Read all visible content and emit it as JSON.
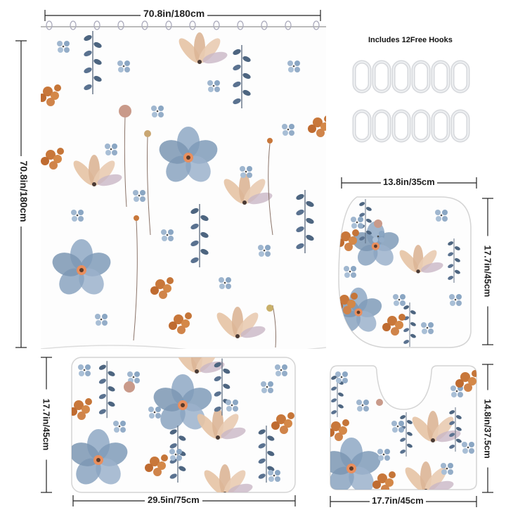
{
  "hooks_label": "Includes 12Free Hooks",
  "dimensions": {
    "curtain_width": "70.8in/180cm",
    "curtain_height": "70.8in/180cm",
    "lid_width": "13.8in/35cm",
    "lid_height": "17.7in/45cm",
    "mat_height": "17.7in/45cm",
    "mat_width": "29.5in/75cm",
    "contour_height": "14.8in/37.5cm",
    "contour_width": "17.7in/45cm"
  },
  "colors": {
    "blue": "#7f9bb8",
    "navy": "#4a5f78",
    "orange": "#c8773a",
    "peach": "#e8c9ad",
    "stem": "#8a7368"
  }
}
